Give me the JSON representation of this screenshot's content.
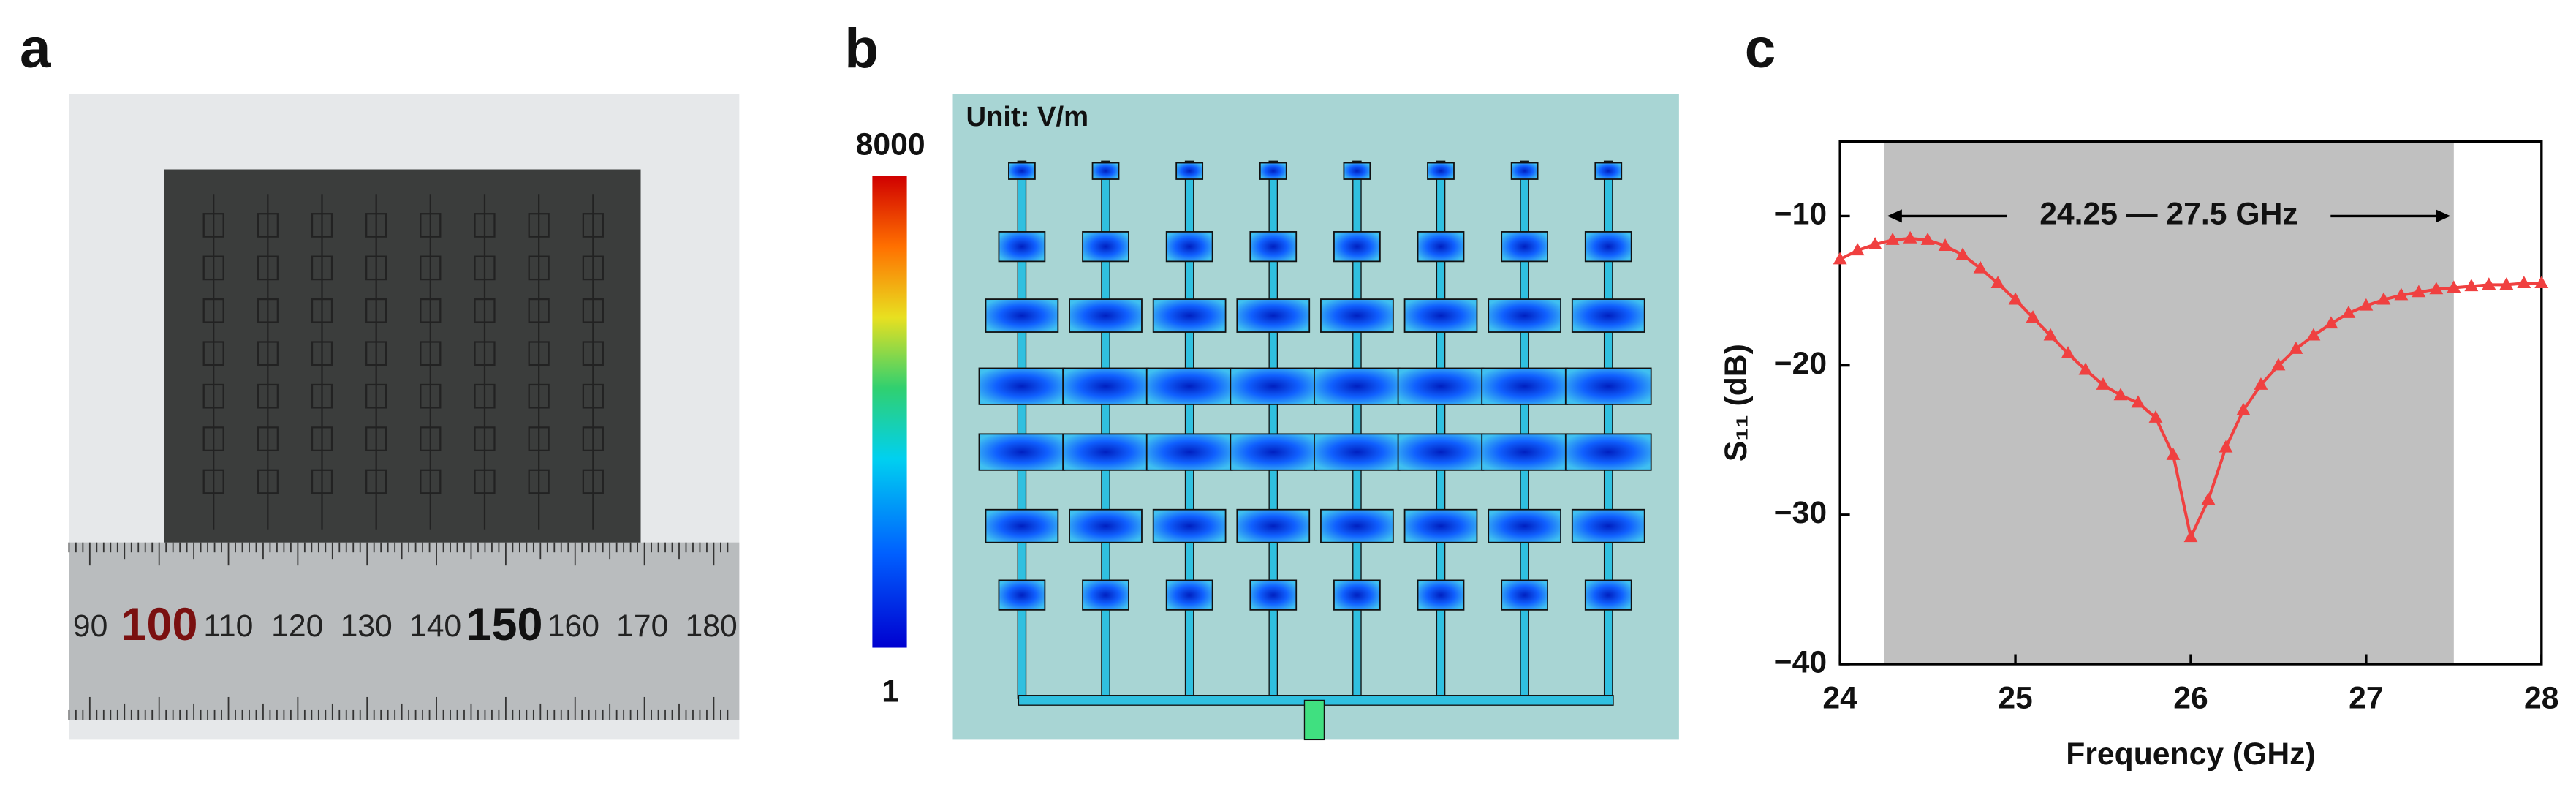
{
  "panels": {
    "a": {
      "label": "a",
      "ruler_labels": [
        "90",
        "100",
        "110",
        "120",
        "130",
        "140",
        "150",
        "160",
        "170",
        "180"
      ]
    },
    "b": {
      "label": "b",
      "unit": "Unit: V/m",
      "colorbar_max": "8000",
      "colorbar_min": "1"
    },
    "c": {
      "label": "c"
    }
  },
  "chart_data": {
    "type": "line",
    "x_label": "Frequency (GHz)",
    "y_label": "S₁₁ (dB)",
    "annotation": "24.25 — 27.5 GHz",
    "band": [
      24.25,
      27.5
    ],
    "band_color": "#c0c0c0",
    "xlim": [
      24,
      28
    ],
    "ylim": [
      -40,
      -5
    ],
    "xticks": [
      24,
      25,
      26,
      27,
      28
    ],
    "yticks": [
      {
        "value": -10,
        "label": "−10"
      },
      {
        "value": -20,
        "label": "−20"
      },
      {
        "value": -30,
        "label": "−30"
      },
      {
        "value": -40,
        "label": "−40"
      }
    ],
    "x": [
      24.0,
      24.1,
      24.2,
      24.3,
      24.4,
      24.5,
      24.6,
      24.7,
      24.8,
      24.9,
      25.0,
      25.1,
      25.2,
      25.3,
      25.4,
      25.5,
      25.6,
      25.7,
      25.8,
      25.9,
      26.0,
      26.1,
      26.2,
      26.3,
      26.4,
      26.5,
      26.6,
      26.7,
      26.8,
      26.9,
      27.0,
      27.1,
      27.2,
      27.3,
      27.4,
      27.5,
      27.6,
      27.7,
      27.8,
      27.9,
      28.0
    ],
    "series": [
      {
        "color": "#f04040",
        "values": [
          -12.9,
          -12.3,
          -11.9,
          -11.6,
          -11.5,
          -11.6,
          -12.0,
          -12.6,
          -13.5,
          -14.5,
          -15.6,
          -16.8,
          -18.0,
          -19.2,
          -20.3,
          -21.3,
          -22.0,
          -22.5,
          -23.5,
          -26.0,
          -31.5,
          -29.0,
          -25.5,
          -23.0,
          -21.3,
          -20.0,
          -18.9,
          -18.0,
          -17.2,
          -16.5,
          -16.0,
          -15.6,
          -15.3,
          -15.1,
          -14.9,
          -14.8,
          -14.7,
          -14.6,
          -14.6,
          -14.5,
          -14.5
        ]
      }
    ]
  }
}
